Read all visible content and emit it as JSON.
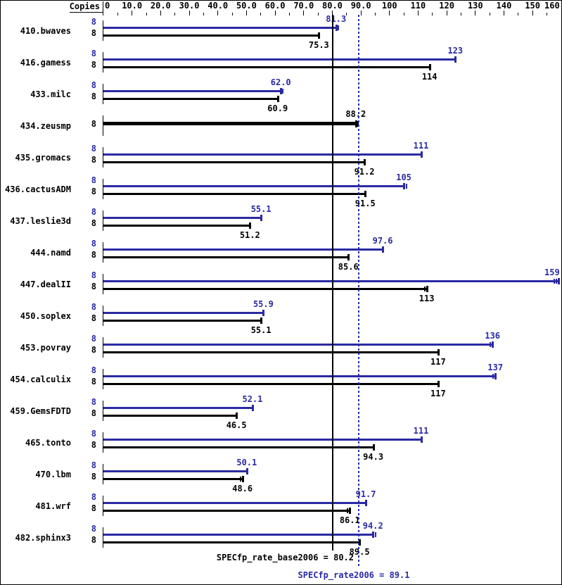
{
  "colors": {
    "peak_blue": "#2a2aa4",
    "base_black": "#000000",
    "background": "#ffffff"
  },
  "chart_data": {
    "type": "bar",
    "orientation": "horizontal",
    "copies_header": "Copies",
    "copies_value": "8",
    "x_axis": {
      "min": 0,
      "max": 160,
      "major_tick_step": 10,
      "minor_tick_step": 5,
      "tick_labels": [
        "0",
        "10.0",
        "20.0",
        "30.0",
        "40.0",
        "50.0",
        "60.0",
        "70.0",
        "80.0",
        "90.0",
        "100",
        "110",
        "120",
        "130",
        "140",
        "150",
        "160"
      ]
    },
    "legend_note": "blue bar = peak rate, black bar = base rate; single thick bar = equal base/peak",
    "benchmarks": [
      {
        "name": "410.bwaves",
        "single": false,
        "copies_peak": "8",
        "copies_base": "8",
        "peak": 81.3,
        "peak_label": "81.3",
        "peak_run_ticks": [
          0.9
        ],
        "base": 75.3,
        "base_label": "75.3",
        "base_run_ticks": []
      },
      {
        "name": "416.gamess",
        "single": false,
        "copies_peak": "8",
        "copies_base": "8",
        "peak": 123,
        "peak_label": "123",
        "peak_run_ticks": [],
        "base": 114,
        "base_label": "114",
        "base_run_ticks": []
      },
      {
        "name": "433.milc",
        "single": false,
        "copies_peak": "8",
        "copies_base": "8",
        "peak": 62.0,
        "peak_label": "62.0",
        "peak_run_ticks": [
          0.7
        ],
        "base": 60.9,
        "base_label": "60.9",
        "base_run_ticks": []
      },
      {
        "name": "434.zeusmp",
        "single": true,
        "copies_peak": "8",
        "copies_base": "8",
        "peak": null,
        "peak_label": "",
        "peak_run_ticks": [],
        "base": 88.2,
        "base_label": "88.2",
        "base_run_ticks": [
          0.7
        ]
      },
      {
        "name": "435.gromacs",
        "single": false,
        "copies_peak": "8",
        "copies_base": "8",
        "peak": 111,
        "peak_label": "111",
        "peak_run_ticks": [],
        "base": 91.2,
        "base_label": "91.2",
        "base_run_ticks": []
      },
      {
        "name": "436.cactusADM",
        "single": false,
        "copies_peak": "8",
        "copies_base": "8",
        "peak": 105,
        "peak_label": "105",
        "peak_run_ticks": [
          0.9
        ],
        "base": 91.5,
        "base_label": "91.5",
        "base_run_ticks": []
      },
      {
        "name": "437.leslie3d",
        "single": false,
        "copies_peak": "8",
        "copies_base": "8",
        "peak": 55.1,
        "peak_label": "55.1",
        "peak_run_ticks": [],
        "base": 51.2,
        "base_label": "51.2",
        "base_run_ticks": []
      },
      {
        "name": "444.namd",
        "single": false,
        "copies_peak": "8",
        "copies_base": "8",
        "peak": 97.6,
        "peak_label": "97.6",
        "peak_run_ticks": [],
        "base": 85.6,
        "base_label": "85.6",
        "base_run_ticks": []
      },
      {
        "name": "447.dealII",
        "single": false,
        "copies_peak": "8",
        "copies_base": "8",
        "peak": 159,
        "peak_label": "159",
        "peak_run_ticks": [
          -1.5,
          -0.7
        ],
        "base": 113,
        "base_label": "113",
        "base_run_ticks": [
          -0.6
        ]
      },
      {
        "name": "450.soplex",
        "single": false,
        "copies_peak": "8",
        "copies_base": "8",
        "peak": 55.9,
        "peak_label": "55.9",
        "peak_run_ticks": [],
        "base": 55.1,
        "base_label": "55.1",
        "base_run_ticks": []
      },
      {
        "name": "453.povray",
        "single": false,
        "copies_peak": "8",
        "copies_base": "8",
        "peak": 136,
        "peak_label": "136",
        "peak_run_ticks": [
          -0.8
        ],
        "base": 117,
        "base_label": "117",
        "base_run_ticks": []
      },
      {
        "name": "454.calculix",
        "single": false,
        "copies_peak": "8",
        "copies_base": "8",
        "peak": 137,
        "peak_label": "137",
        "peak_run_ticks": [
          -0.8
        ],
        "base": 117,
        "base_label": "117",
        "base_run_ticks": []
      },
      {
        "name": "459.GemsFDTD",
        "single": false,
        "copies_peak": "8",
        "copies_base": "8",
        "peak": 52.1,
        "peak_label": "52.1",
        "peak_run_ticks": [],
        "base": 46.5,
        "base_label": "46.5",
        "base_run_ticks": []
      },
      {
        "name": "465.tonto",
        "single": false,
        "copies_peak": "8",
        "copies_base": "8",
        "peak": 111,
        "peak_label": "111",
        "peak_run_ticks": [],
        "base": 94.3,
        "base_label": "94.3",
        "base_run_ticks": []
      },
      {
        "name": "470.lbm",
        "single": false,
        "copies_peak": "8",
        "copies_base": "8",
        "peak": 50.1,
        "peak_label": "50.1",
        "peak_run_ticks": [],
        "base": 48.6,
        "base_label": "48.6",
        "base_run_ticks": [
          -0.7
        ]
      },
      {
        "name": "481.wrf",
        "single": false,
        "copies_peak": "8",
        "copies_base": "8",
        "peak": 91.7,
        "peak_label": "91.7",
        "peak_run_ticks": [],
        "base": 86.1,
        "base_label": "86.1",
        "base_run_ticks": [
          -0.8
        ]
      },
      {
        "name": "482.sphinx3",
        "single": false,
        "copies_peak": "8",
        "copies_base": "8",
        "peak": 94.2,
        "peak_label": "94.2",
        "peak_run_ticks": [
          0.9
        ],
        "base": 89.5,
        "base_label": "89.5",
        "base_run_ticks": []
      }
    ],
    "reference_lines": [
      {
        "label": "SPECfp_rate_base2006 = 80.2",
        "value": 80.2,
        "style": "solid",
        "color": "#000000"
      },
      {
        "label": "SPECfp_rate2006 = 89.1",
        "value": 89.1,
        "style": "dotted",
        "color": "#2a2aa4"
      }
    ]
  }
}
